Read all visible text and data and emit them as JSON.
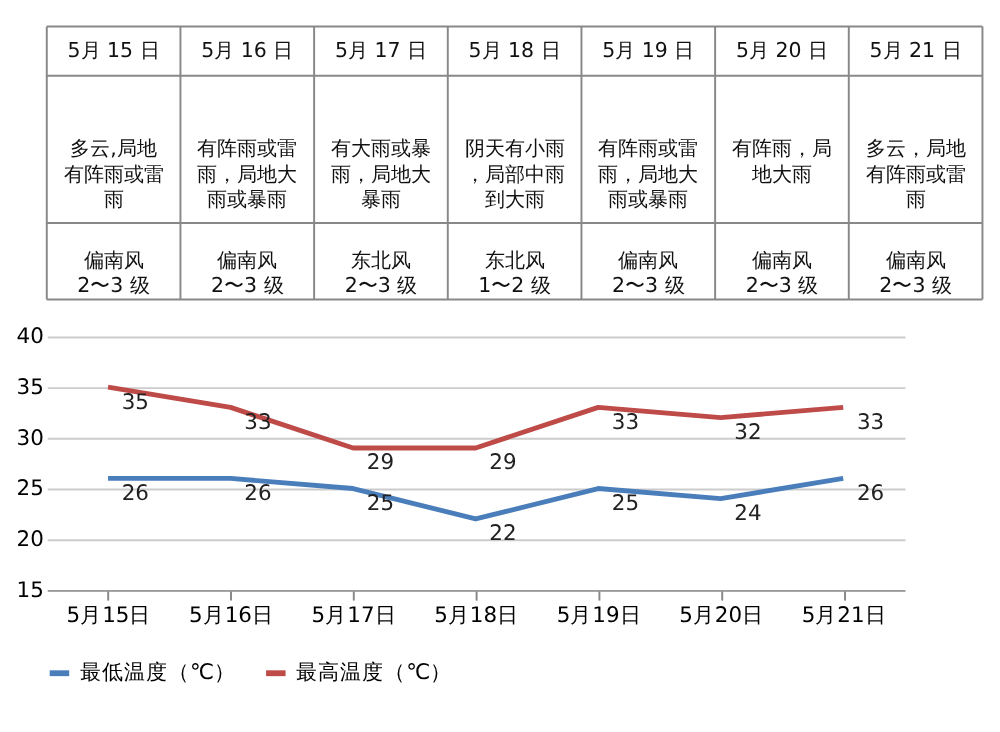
{
  "chart_data": [
    {
      "type": "other",
      "annotations": [
        "5月 15 日",
        "5月 16 日",
        "5月 17 日",
        "5月 18 日",
        "5月 19 日",
        "5月 20 日",
        "5月 21 日",
        "多云,局地有阵雨或雷雨",
        "有阵雨或雷雨，局地大雨或暴雨",
        "有大雨或暴雨，局地大暴雨",
        "阴天有小雨，局部中雨到大雨",
        "有阵雨或雷雨，局地大雨或暴雨",
        "有阵雨，局地大雨",
        "多云，局地有阵雨或雷雨",
        "偏南风\n2〜3 级",
        "偏南风\n2〜3 级",
        "东北风\n2〜3 级",
        "东北风\n1〜2 级",
        "偏南风\n2〜3 级",
        "偏南风\n2〜3 级",
        "偏南风\n2〜3 级"
      ]
    },
    {
      "type": "line",
      "categories": [
        "5月15日",
        "5月16日",
        "5月17日",
        "5月18日",
        "5月19日",
        "5月20日",
        "5月21日"
      ],
      "series": [
        {
          "name": "最低温度（℃）",
          "color": "#4a7ebb",
          "values": [
            26,
            26,
            25,
            22,
            25,
            24,
            26
          ]
        },
        {
          "name": "最高温度（℃）",
          "color": "#be4b48",
          "values": [
            35,
            33,
            29,
            29,
            33,
            32,
            33
          ]
        }
      ],
      "ylim": [
        15,
        40
      ],
      "yticks": [
        15,
        20,
        25,
        30,
        35,
        40
      ],
      "grid": "y",
      "legend": "bottom",
      "data_labels": true,
      "marker": "none",
      "line_style": "solid"
    }
  ]
}
